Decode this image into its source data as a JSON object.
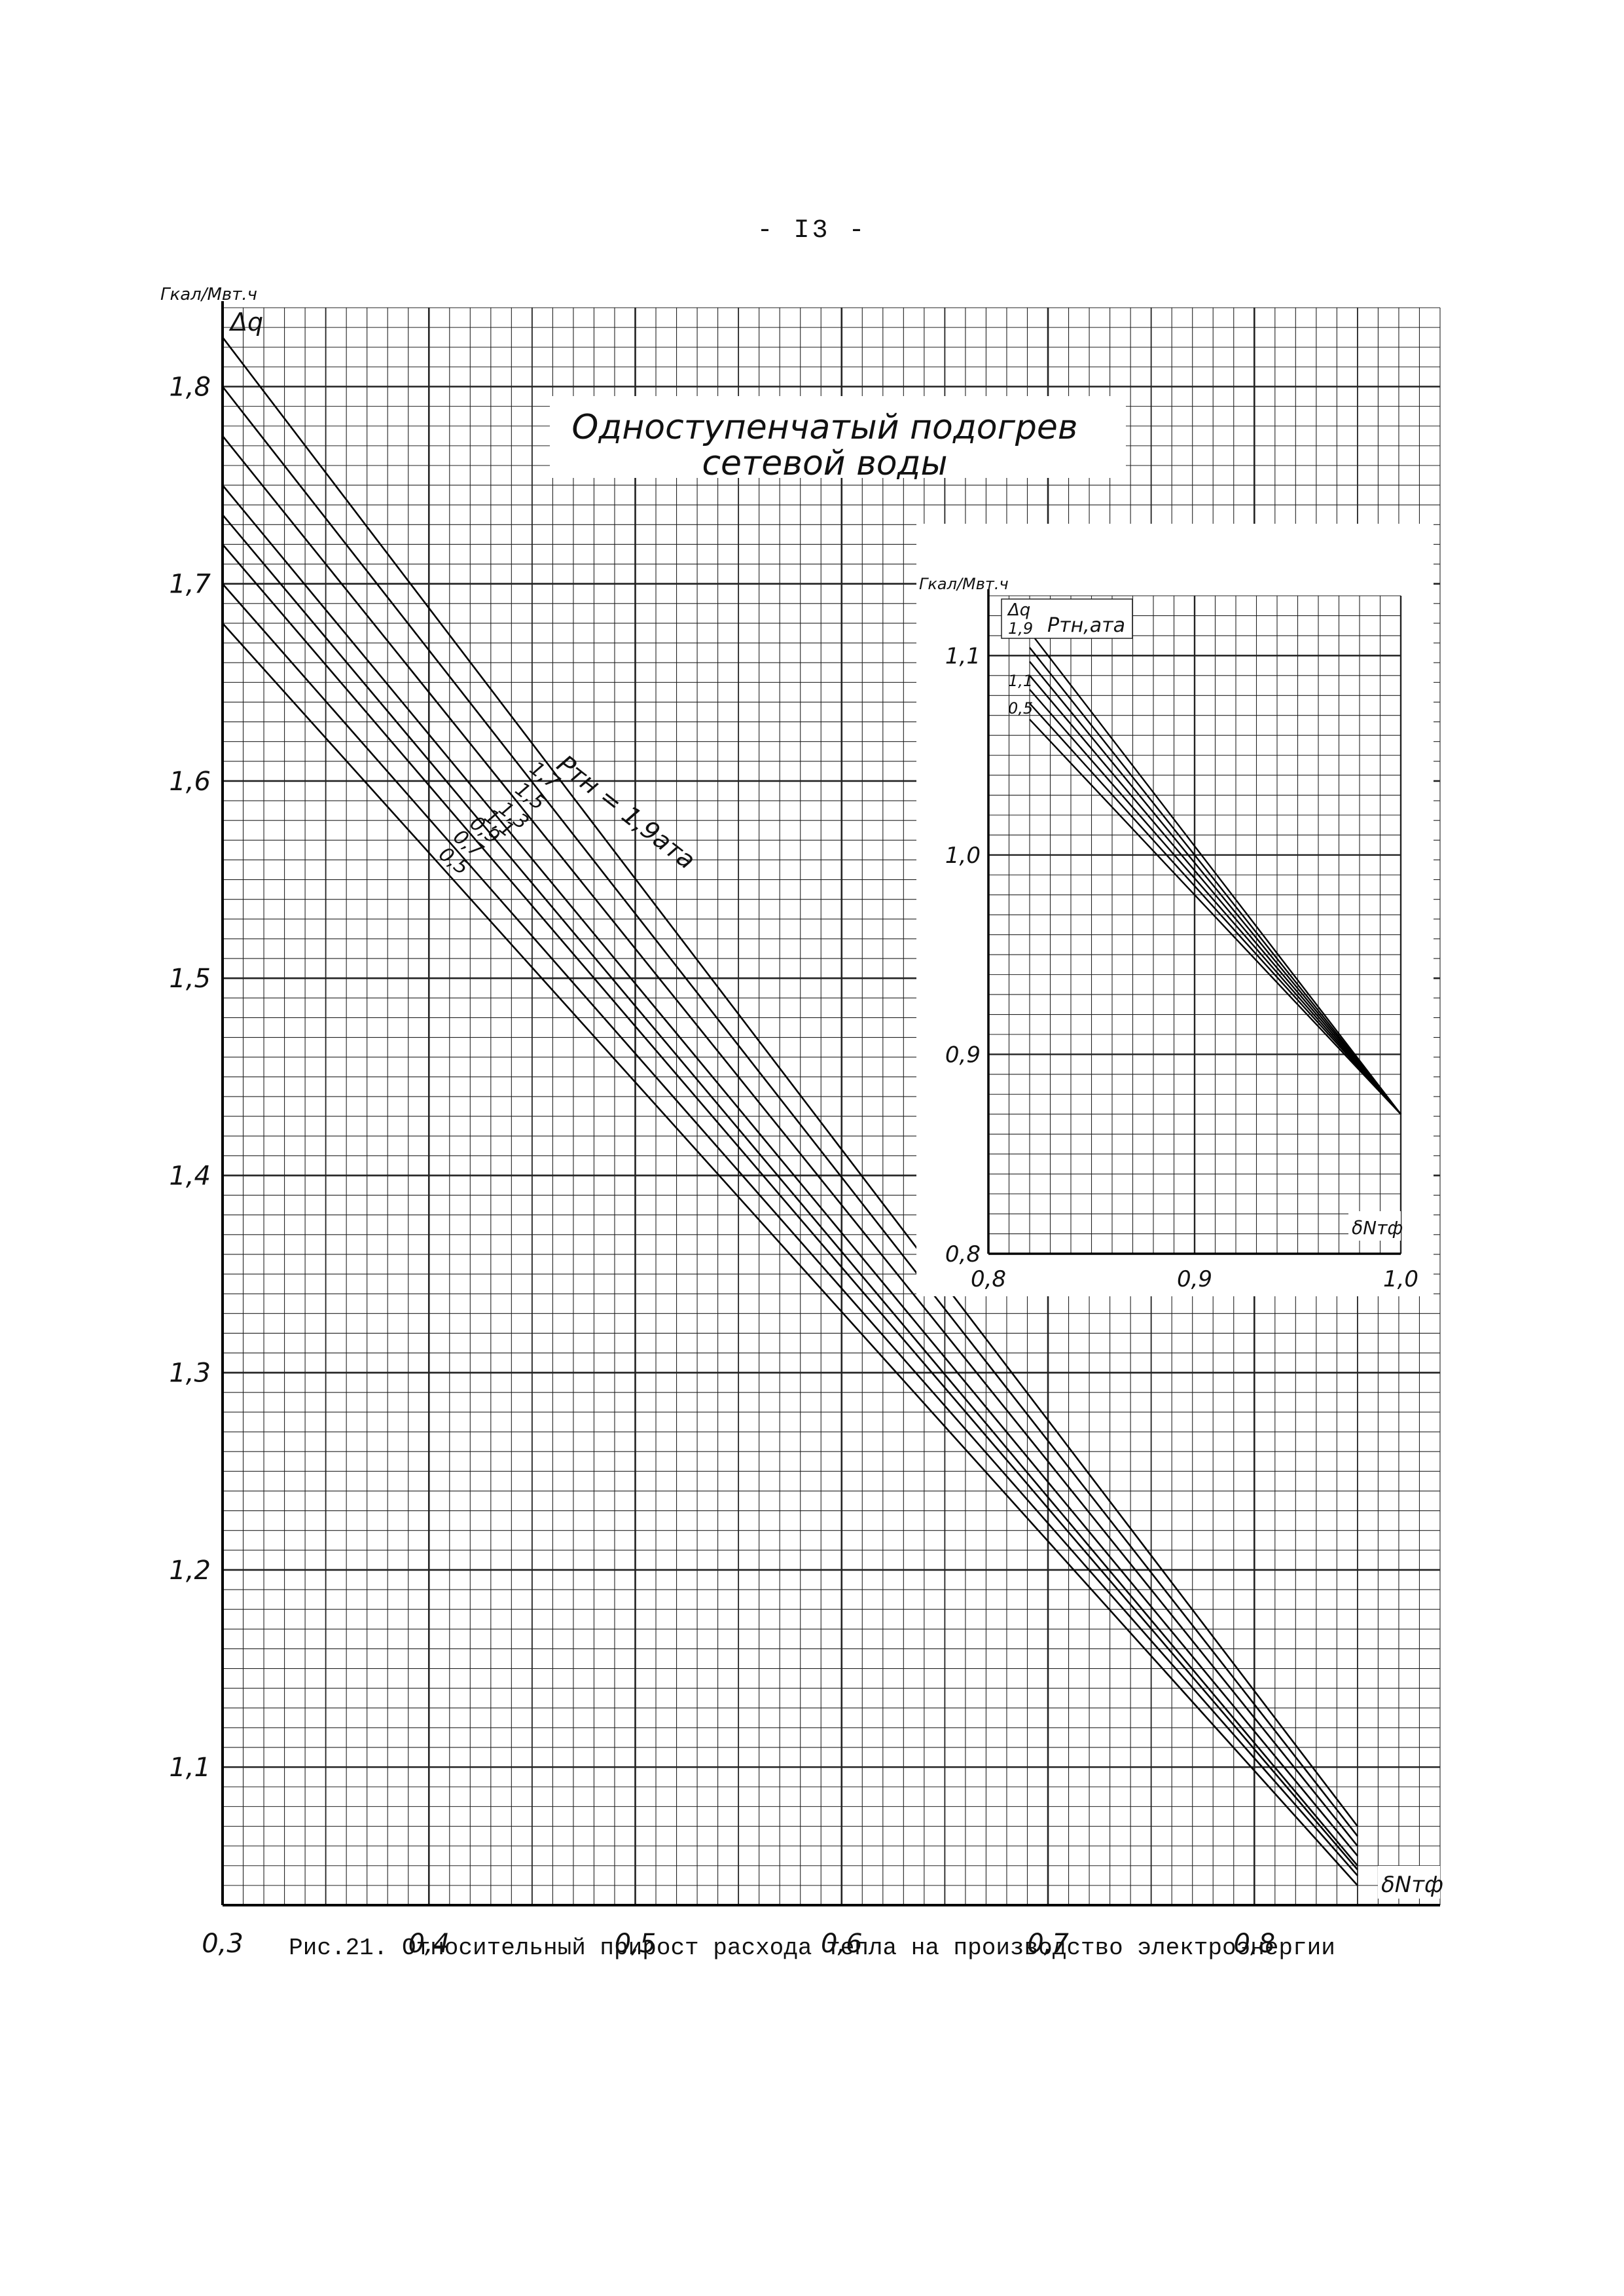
{
  "page_number": "- I3 -",
  "caption": "Рис.21. Относительный прирост расхода тепла на производство электроэнергии",
  "chart_data": [
    {
      "type": "line",
      "title": "Одноступенчатый подогрев сетевой воды",
      "title_lines": [
        "Одноступенчатый подогрев",
        "сетевой воды"
      ],
      "ylabel": "Δq",
      "yunit": "Гкал/Мвт.ч",
      "xlabel": "δNтф",
      "xlim": [
        0.3,
        0.89
      ],
      "ylim": [
        1.03,
        1.84
      ],
      "xticks": [
        "0,3",
        "0,4",
        "0,5",
        "0,6",
        "0,7",
        "0,8"
      ],
      "yticks": [
        "1,1",
        "1,2",
        "1,3",
        "1,4",
        "1,5",
        "1,6",
        "1,7",
        "1,8"
      ],
      "grid": true,
      "legend_title": "Pтн = 1,9ата",
      "series": [
        {
          "name": "1,9",
          "x": [
            0.3,
            0.85
          ],
          "y": [
            1.825,
            1.07
          ]
        },
        {
          "name": "1,7",
          "x": [
            0.3,
            0.85
          ],
          "y": [
            1.8,
            1.065
          ]
        },
        {
          "name": "1,5",
          "x": [
            0.3,
            0.85
          ],
          "y": [
            1.775,
            1.06
          ]
        },
        {
          "name": "1,3",
          "x": [
            0.3,
            0.85
          ],
          "y": [
            1.75,
            1.055
          ]
        },
        {
          "name": "1,1",
          "x": [
            0.3,
            0.85
          ],
          "y": [
            1.735,
            1.05
          ]
        },
        {
          "name": "0,9",
          "x": [
            0.3,
            0.85
          ],
          "y": [
            1.72,
            1.048
          ]
        },
        {
          "name": "0,7",
          "x": [
            0.3,
            0.85
          ],
          "y": [
            1.7,
            1.045
          ]
        },
        {
          "name": "0,5",
          "x": [
            0.3,
            0.85
          ],
          "y": [
            1.68,
            1.04
          ]
        }
      ]
    },
    {
      "type": "line",
      "title": "",
      "ylabel": "Δq",
      "yunit": "Гкал/Мвт.ч",
      "xlabel": "δNтф",
      "xlim": [
        0.8,
        1.0
      ],
      "ylim": [
        0.8,
        1.13
      ],
      "xticks": [
        "0,8",
        "0,9",
        "1,0"
      ],
      "yticks": [
        "0,8",
        "0,9",
        "1,0",
        "1,1"
      ],
      "grid": true,
      "legend_title": "Pтн,ата",
      "legend_entries": [
        "1,9",
        "1,1",
        "0,5"
      ],
      "series": [
        {
          "name": "1,9",
          "x": [
            0.82,
            1.0
          ],
          "y": [
            1.112,
            0.87
          ]
        },
        {
          "name": "",
          "x": [
            0.82,
            1.0
          ],
          "y": [
            1.104,
            0.87
          ]
        },
        {
          "name": "",
          "x": [
            0.82,
            1.0
          ],
          "y": [
            1.097,
            0.87
          ]
        },
        {
          "name": "1,1",
          "x": [
            0.82,
            1.0
          ],
          "y": [
            1.09,
            0.87
          ]
        },
        {
          "name": "",
          "x": [
            0.82,
            1.0
          ],
          "y": [
            1.083,
            0.87
          ]
        },
        {
          "name": "",
          "x": [
            0.82,
            1.0
          ],
          "y": [
            1.076,
            0.87
          ]
        },
        {
          "name": "0,5",
          "x": [
            0.82,
            1.0
          ],
          "y": [
            1.068,
            0.87
          ]
        }
      ]
    }
  ]
}
